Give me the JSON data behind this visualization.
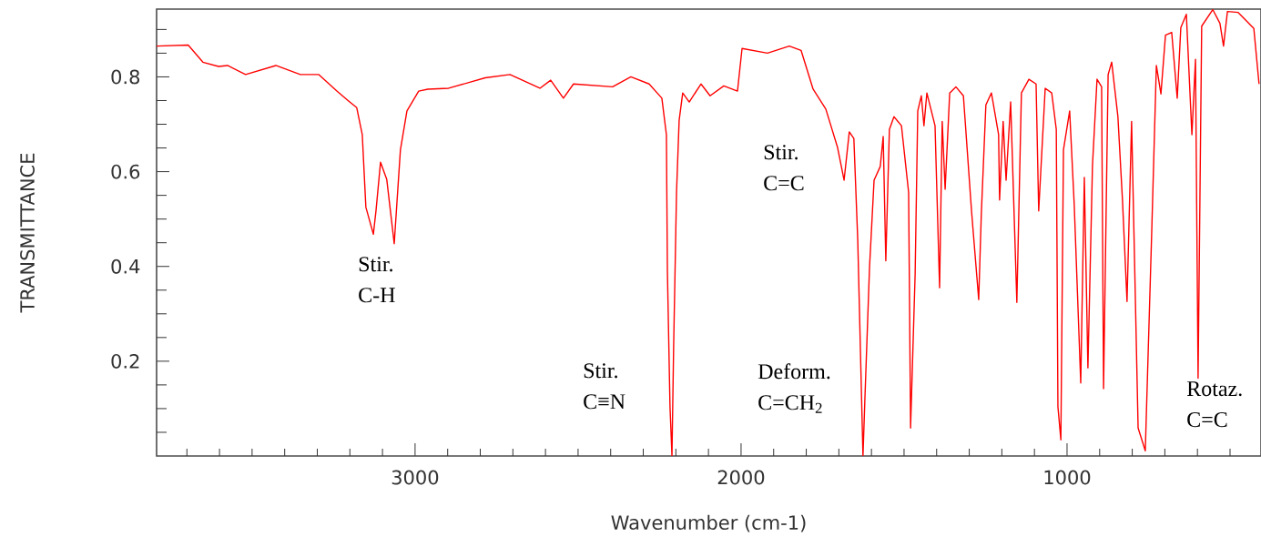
{
  "chart_data": {
    "type": "line",
    "xlabel": "Wavenumber (cm-1)",
    "ylabel": "TRANSMITTANCE",
    "xlim": [
      3793,
      405
    ],
    "ylim": [
      0,
      0.943
    ],
    "xticks": [
      {
        "value": 3700,
        "label": null
      },
      {
        "value": 3600,
        "label": null
      },
      {
        "value": 3500,
        "label": null
      },
      {
        "value": 3400,
        "label": null
      },
      {
        "value": 3300,
        "label": null
      },
      {
        "value": 3200,
        "label": null
      },
      {
        "value": 3100,
        "label": null
      },
      3000,
      {
        "value": 2900,
        "label": null
      },
      {
        "value": 2800,
        "label": null
      },
      {
        "value": 2700,
        "label": null
      },
      {
        "value": 2600,
        "label": null
      },
      {
        "value": 2500,
        "label": null
      },
      {
        "value": 2400,
        "label": null
      },
      {
        "value": 2300,
        "label": null
      },
      {
        "value": 2200,
        "label": null
      },
      {
        "value": 2100,
        "label": null
      },
      2000,
      {
        "value": 1900,
        "label": null
      },
      {
        "value": 1800,
        "label": null
      },
      {
        "value": 1700,
        "label": null
      },
      {
        "value": 1600,
        "label": null
      },
      {
        "value": 1500,
        "label": null
      },
      {
        "value": 1400,
        "label": null
      },
      {
        "value": 1300,
        "label": null
      },
      {
        "value": 1200,
        "label": null
      },
      {
        "value": 1100,
        "label": null
      },
      1000,
      {
        "value": 900,
        "label": null
      },
      {
        "value": 800,
        "label": null
      },
      {
        "value": 700,
        "label": null
      },
      {
        "value": 600,
        "label": null
      },
      {
        "value": 500,
        "label": null
      }
    ],
    "yticks": [
      {
        "value": 0.05,
        "label": null
      },
      {
        "value": 0.1,
        "label": null
      },
      {
        "value": 0.15,
        "label": null
      },
      0.2,
      {
        "value": 0.25,
        "label": null
      },
      {
        "value": 0.3,
        "label": null
      },
      {
        "value": 0.35,
        "label": null
      },
      0.4,
      {
        "value": 0.45,
        "label": null
      },
      {
        "value": 0.5,
        "label": null
      },
      {
        "value": 0.55,
        "label": null
      },
      0.6,
      {
        "value": 0.65,
        "label": null
      },
      {
        "value": 0.7,
        "label": null
      },
      {
        "value": 0.75,
        "label": null
      },
      0.8,
      {
        "value": 0.85,
        "label": null
      },
      {
        "value": 0.9,
        "label": null
      }
    ],
    "marker": "none",
    "line_style": "solid",
    "annotations": [
      "Stir. C-H",
      "Stir. C≡N",
      "Stir. C=C",
      "Deform. C=CH$_{2}$",
      "Rotaz. C=C"
    ],
    "series": [
      {
        "color": "#ff0000",
        "x": [
          3793,
          3696,
          3651,
          3603,
          3575,
          3520,
          3427,
          3352,
          3296,
          3240,
          3204,
          3179,
          3162,
          3151,
          3128,
          3120,
          3106,
          3087,
          3064,
          3045,
          3025,
          2989,
          2961,
          2897,
          2785,
          2709,
          2617,
          2584,
          2545,
          2514,
          2394,
          2338,
          2282,
          2243,
          2229,
          2226,
          2218,
          2212,
          2207,
          2198,
          2190,
          2179,
          2159,
          2123,
          2095,
          2053,
          2011,
          1997,
          1919,
          1852,
          1816,
          1779,
          1740,
          1704,
          1684,
          1668,
          1654,
          1642,
          1626,
          1620,
          1606,
          1592,
          1573,
          1564,
          1556,
          1545,
          1531,
          1508,
          1486,
          1480,
          1466,
          1458,
          1447,
          1439,
          1430,
          1405,
          1391,
          1383,
          1374,
          1360,
          1341,
          1318,
          1293,
          1271,
          1263,
          1249,
          1232,
          1210,
          1207,
          1196,
          1187,
          1173,
          1154,
          1140,
          1117,
          1095,
          1087,
          1067,
          1047,
          1033,
          1028,
          1019,
          1011,
          992,
          978,
          958,
          947,
          936,
          922,
          908,
          894,
          888,
          874,
          863,
          844,
          830,
          816,
          802,
          782,
          760,
          740,
          726,
          712,
          698,
          679,
          662,
          651,
          634,
          617,
          606,
          598,
          587,
          553,
          531,
          520,
          508,
          475,
          427,
          411
        ],
        "values": [
          0.865,
          0.867,
          0.831,
          0.822,
          0.824,
          0.805,
          0.824,
          0.805,
          0.805,
          0.77,
          0.749,
          0.735,
          0.678,
          0.525,
          0.468,
          0.517,
          0.62,
          0.584,
          0.448,
          0.646,
          0.728,
          0.77,
          0.774,
          0.776,
          0.798,
          0.805,
          0.776,
          0.793,
          0.755,
          0.785,
          0.779,
          0.8,
          0.785,
          0.755,
          0.678,
          0.391,
          0.104,
          0,
          0.225,
          0.556,
          0.708,
          0.766,
          0.747,
          0.785,
          0.76,
          0.781,
          0.77,
          0.86,
          0.85,
          0.865,
          0.856,
          0.774,
          0.732,
          0.651,
          0.582,
          0.684,
          0.67,
          0.454,
          0,
          0.123,
          0.397,
          0.582,
          0.611,
          0.674,
          0.412,
          0.689,
          0.716,
          0.697,
          0.556,
          0.059,
          0.384,
          0.728,
          0.76,
          0.697,
          0.766,
          0.697,
          0.355,
          0.706,
          0.563,
          0.766,
          0.779,
          0.76,
          0.517,
          0.33,
          0.511,
          0.741,
          0.766,
          0.678,
          0.54,
          0.706,
          0.582,
          0.747,
          0.324,
          0.766,
          0.795,
          0.785,
          0.517,
          0.776,
          0.766,
          0.689,
          0.104,
          0.034,
          0.646,
          0.728,
          0.531,
          0.154,
          0.588,
          0.186,
          0.613,
          0.795,
          0.779,
          0.142,
          0.805,
          0.831,
          0.716,
          0.54,
          0.326,
          0.706,
          0.059,
          0.011,
          0.479,
          0.824,
          0.764,
          0.888,
          0.894,
          0.755,
          0.904,
          0.932,
          0.678,
          0.837,
          0.164,
          0.907,
          0.942,
          0.913,
          0.865,
          0.938,
          0.936,
          0.902,
          0.785
        ]
      }
    ]
  }
}
